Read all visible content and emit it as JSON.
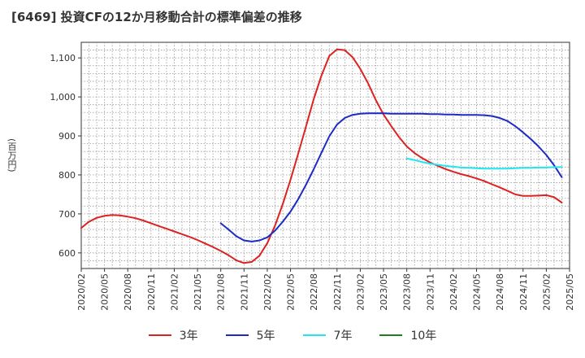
{
  "title": "[6469]  投資CFの12か月移動合計の標準偏差の推移",
  "chart_data": {
    "type": "line",
    "ylabel": "(百万円)",
    "ylim": [
      560,
      1140
    ],
    "yticks": [
      600,
      700,
      800,
      900,
      1000,
      1100
    ],
    "ytick_labels": [
      "600",
      "700",
      "800",
      "900",
      "1,000",
      "1,100"
    ],
    "xlim": [
      "2020/02",
      "2025/05"
    ],
    "xtick_labels": [
      "2020/02",
      "2020/05",
      "2020/08",
      "2020/11",
      "2021/02",
      "2021/05",
      "2021/08",
      "2021/11",
      "2022/02",
      "2022/05",
      "2022/08",
      "2022/11",
      "2023/02",
      "2023/05",
      "2023/08",
      "2023/11",
      "2024/02",
      "2024/05",
      "2024/08",
      "2024/11",
      "2025/02",
      "2025/05"
    ],
    "grid": true,
    "legend_position": "bottom",
    "series": [
      {
        "name": "3年",
        "color": "#dd2222",
        "points": [
          [
            "2020/02",
            664
          ],
          [
            "2020/03",
            680
          ],
          [
            "2020/04",
            690
          ],
          [
            "2020/05",
            695
          ],
          [
            "2020/06",
            697
          ],
          [
            "2020/07",
            696
          ],
          [
            "2020/08",
            693
          ],
          [
            "2020/09",
            689
          ],
          [
            "2020/10",
            683
          ],
          [
            "2020/11",
            676
          ],
          [
            "2020/12",
            669
          ],
          [
            "2021/01",
            662
          ],
          [
            "2021/02",
            655
          ],
          [
            "2021/03",
            648
          ],
          [
            "2021/04",
            641
          ],
          [
            "2021/05",
            633
          ],
          [
            "2021/06",
            624
          ],
          [
            "2021/07",
            615
          ],
          [
            "2021/08",
            605
          ],
          [
            "2021/09",
            594
          ],
          [
            "2021/10",
            581
          ],
          [
            "2021/11",
            574
          ],
          [
            "2021/12",
            577
          ],
          [
            "2022/01",
            593
          ],
          [
            "2022/02",
            625
          ],
          [
            "2022/03",
            670
          ],
          [
            "2022/04",
            725
          ],
          [
            "2022/05",
            788
          ],
          [
            "2022/06",
            855
          ],
          [
            "2022/07",
            925
          ],
          [
            "2022/08",
            995
          ],
          [
            "2022/09",
            1055
          ],
          [
            "2022/10",
            1105
          ],
          [
            "2022/11",
            1122
          ],
          [
            "2022/12",
            1120
          ],
          [
            "2023/01",
            1102
          ],
          [
            "2023/02",
            1072
          ],
          [
            "2023/03",
            1035
          ],
          [
            "2023/04",
            992
          ],
          [
            "2023/05",
            955
          ],
          [
            "2023/06",
            925
          ],
          [
            "2023/07",
            897
          ],
          [
            "2023/08",
            873
          ],
          [
            "2023/09",
            856
          ],
          [
            "2023/10",
            843
          ],
          [
            "2023/11",
            832
          ],
          [
            "2023/12",
            823
          ],
          [
            "2024/01",
            815
          ],
          [
            "2024/02",
            808
          ],
          [
            "2024/03",
            802
          ],
          [
            "2024/04",
            797
          ],
          [
            "2024/05",
            791
          ],
          [
            "2024/06",
            784
          ],
          [
            "2024/07",
            776
          ],
          [
            "2024/08",
            768
          ],
          [
            "2024/09",
            759
          ],
          [
            "2024/10",
            750
          ],
          [
            "2024/11",
            746
          ],
          [
            "2024/12",
            746
          ],
          [
            "2025/01",
            747
          ],
          [
            "2025/02",
            748
          ],
          [
            "2025/03",
            743
          ],
          [
            "2025/04",
            729
          ]
        ]
      },
      {
        "name": "5年",
        "color": "#1c2bc4",
        "points": [
          [
            "2021/08",
            676
          ],
          [
            "2021/09",
            660
          ],
          [
            "2021/10",
            643
          ],
          [
            "2021/11",
            632
          ],
          [
            "2021/12",
            629
          ],
          [
            "2022/01",
            632
          ],
          [
            "2022/02",
            640
          ],
          [
            "2022/03",
            657
          ],
          [
            "2022/04",
            680
          ],
          [
            "2022/05",
            706
          ],
          [
            "2022/06",
            738
          ],
          [
            "2022/07",
            775
          ],
          [
            "2022/08",
            815
          ],
          [
            "2022/09",
            857
          ],
          [
            "2022/10",
            899
          ],
          [
            "2022/11",
            929
          ],
          [
            "2022/12",
            946
          ],
          [
            "2023/01",
            954
          ],
          [
            "2023/02",
            957
          ],
          [
            "2023/03",
            958
          ],
          [
            "2023/04",
            958
          ],
          [
            "2023/05",
            958
          ],
          [
            "2023/06",
            957
          ],
          [
            "2023/07",
            957
          ],
          [
            "2023/08",
            957
          ],
          [
            "2023/09",
            957
          ],
          [
            "2023/10",
            957
          ],
          [
            "2023/11",
            956
          ],
          [
            "2023/12",
            956
          ],
          [
            "2024/01",
            955
          ],
          [
            "2024/02",
            955
          ],
          [
            "2024/03",
            954
          ],
          [
            "2024/04",
            954
          ],
          [
            "2024/05",
            954
          ],
          [
            "2024/06",
            953
          ],
          [
            "2024/07",
            951
          ],
          [
            "2024/08",
            946
          ],
          [
            "2024/09",
            938
          ],
          [
            "2024/10",
            925
          ],
          [
            "2024/11",
            909
          ],
          [
            "2024/12",
            892
          ],
          [
            "2025/01",
            873
          ],
          [
            "2025/02",
            851
          ],
          [
            "2025/03",
            825
          ],
          [
            "2025/04",
            794
          ]
        ]
      },
      {
        "name": "7年",
        "color": "#22e6ee",
        "points": [
          [
            "2023/08",
            842
          ],
          [
            "2023/09",
            838
          ],
          [
            "2023/10",
            833
          ],
          [
            "2023/11",
            829
          ],
          [
            "2023/12",
            826
          ],
          [
            "2024/01",
            823
          ],
          [
            "2024/02",
            821
          ],
          [
            "2024/03",
            819
          ],
          [
            "2024/04",
            818
          ],
          [
            "2024/05",
            817
          ],
          [
            "2024/06",
            816
          ],
          [
            "2024/07",
            816
          ],
          [
            "2024/08",
            816
          ],
          [
            "2024/09",
            816
          ],
          [
            "2024/10",
            817
          ],
          [
            "2024/11",
            818
          ],
          [
            "2024/12",
            818
          ],
          [
            "2025/01",
            819
          ],
          [
            "2025/02",
            819
          ],
          [
            "2025/03",
            820
          ],
          [
            "2025/04",
            820
          ]
        ]
      },
      {
        "name": "10年",
        "color": "#1f7f1f",
        "points": []
      }
    ]
  }
}
